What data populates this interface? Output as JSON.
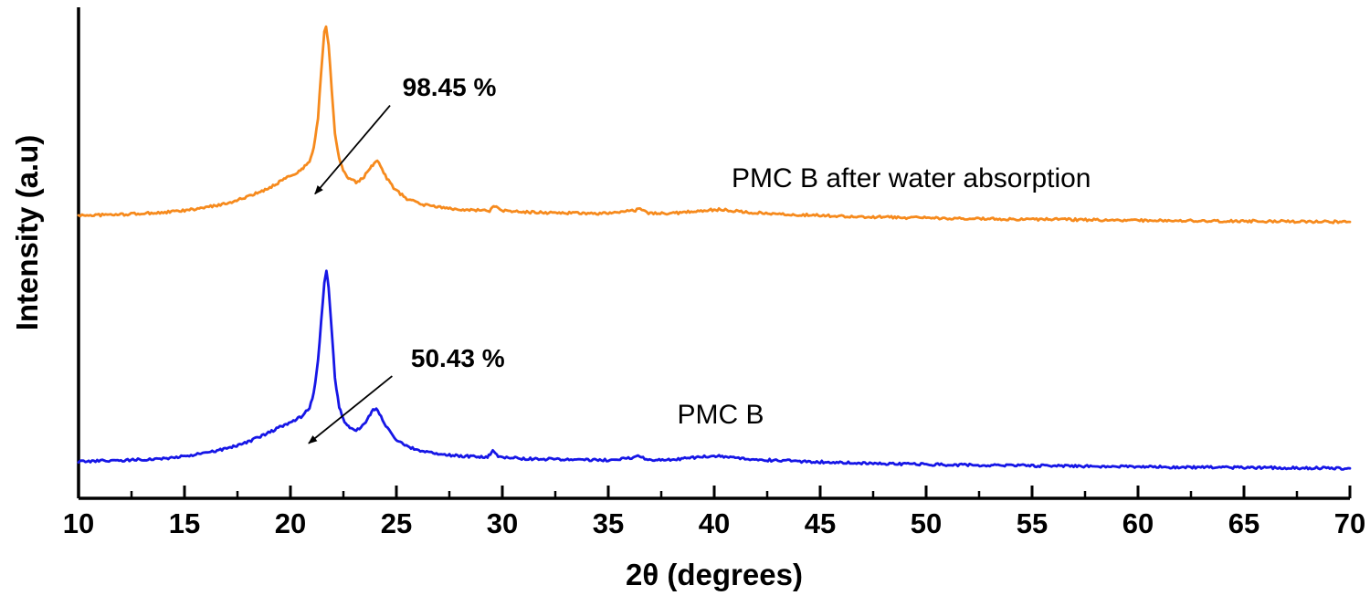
{
  "chart_data": {
    "type": "line",
    "title": "",
    "xlabel": "2θ (degrees)",
    "ylabel": "Intensity (a.u)",
    "xlim": [
      10,
      70
    ],
    "ylim": [
      0,
      1
    ],
    "x_ticks": [
      10,
      15,
      20,
      25,
      30,
      35,
      40,
      45,
      50,
      55,
      60,
      65,
      70
    ],
    "x_minor_ticks": [
      12.5,
      17.5,
      22.5,
      27.5,
      32.5,
      37.5,
      42.5,
      47.5,
      52.5,
      57.5,
      62.5,
      67.5
    ],
    "grid": false,
    "legend": "inline-labels",
    "axis_color": "#000000",
    "background": "#ffffff",
    "series": [
      {
        "name": "PMC B after water absorption",
        "color": "#F68A1D",
        "noise": 0.005,
        "label_pos": {
          "x": 49.3,
          "y": 0.651
        },
        "annotation": {
          "text": "98.45 %",
          "text_pos": {
            "x": 27.5,
            "y": 0.836
          },
          "arrow_from": {
            "x": 24.7,
            "y": 0.8
          },
          "arrow_to": {
            "x": 21.16,
            "y": 0.62
          }
        },
        "points": [
          [
            10,
            0.576
          ],
          [
            12,
            0.578
          ],
          [
            14,
            0.582
          ],
          [
            15,
            0.586
          ],
          [
            16,
            0.592
          ],
          [
            17,
            0.601
          ],
          [
            18,
            0.614
          ],
          [
            18.8,
            0.628
          ],
          [
            19.4,
            0.642
          ],
          [
            19.7,
            0.652
          ],
          [
            19.9,
            0.655
          ],
          [
            20.2,
            0.66
          ],
          [
            20.6,
            0.672
          ],
          [
            20.9,
            0.687
          ],
          [
            21.1,
            0.713
          ],
          [
            21.3,
            0.775
          ],
          [
            21.45,
            0.868
          ],
          [
            21.6,
            0.952
          ],
          [
            21.68,
            0.962
          ],
          [
            21.8,
            0.925
          ],
          [
            21.95,
            0.83
          ],
          [
            22.1,
            0.745
          ],
          [
            22.3,
            0.69
          ],
          [
            22.55,
            0.662
          ],
          [
            22.8,
            0.649
          ],
          [
            23.1,
            0.644
          ],
          [
            23.4,
            0.651
          ],
          [
            23.7,
            0.668
          ],
          [
            23.95,
            0.683
          ],
          [
            24.1,
            0.686
          ],
          [
            24.25,
            0.676
          ],
          [
            24.55,
            0.652
          ],
          [
            24.95,
            0.628
          ],
          [
            25.5,
            0.61
          ],
          [
            26.3,
            0.598
          ],
          [
            27.3,
            0.591
          ],
          [
            28.6,
            0.587
          ],
          [
            29.4,
            0.586
          ],
          [
            29.65,
            0.596
          ],
          [
            29.9,
            0.586
          ],
          [
            31,
            0.583
          ],
          [
            33,
            0.581
          ],
          [
            35,
            0.58
          ],
          [
            36.2,
            0.586
          ],
          [
            36.5,
            0.589
          ],
          [
            36.9,
            0.581
          ],
          [
            38,
            0.58
          ],
          [
            39.3,
            0.586
          ],
          [
            40.3,
            0.588
          ],
          [
            41.5,
            0.583
          ],
          [
            43,
            0.579
          ],
          [
            45,
            0.576
          ],
          [
            47.5,
            0.573
          ],
          [
            50,
            0.571
          ],
          [
            53,
            0.569
          ],
          [
            56,
            0.568
          ],
          [
            60,
            0.566
          ],
          [
            64,
            0.565
          ],
          [
            67,
            0.564
          ],
          [
            70,
            0.563
          ]
        ]
      },
      {
        "name": "PMC B",
        "color": "#1616E6",
        "noise": 0.005,
        "label_pos": {
          "x": 40.3,
          "y": 0.169
        },
        "annotation": {
          "text": "50.43 %",
          "text_pos": {
            "x": 27.9,
            "y": 0.284
          },
          "arrow_from": {
            "x": 24.8,
            "y": 0.249
          },
          "arrow_to": {
            "x": 20.86,
            "y": 0.112
          }
        },
        "points": [
          [
            10,
            0.075
          ],
          [
            12,
            0.077
          ],
          [
            14,
            0.081
          ],
          [
            15,
            0.086
          ],
          [
            16,
            0.092
          ],
          [
            17,
            0.101
          ],
          [
            18,
            0.115
          ],
          [
            18.8,
            0.13
          ],
          [
            19.5,
            0.145
          ],
          [
            20.0,
            0.154
          ],
          [
            20.5,
            0.166
          ],
          [
            20.9,
            0.185
          ],
          [
            21.1,
            0.215
          ],
          [
            21.3,
            0.28
          ],
          [
            21.45,
            0.36
          ],
          [
            21.6,
            0.44
          ],
          [
            21.7,
            0.462
          ],
          [
            21.8,
            0.43
          ],
          [
            21.95,
            0.34
          ],
          [
            22.1,
            0.245
          ],
          [
            22.3,
            0.185
          ],
          [
            22.55,
            0.155
          ],
          [
            22.8,
            0.142
          ],
          [
            23.1,
            0.138
          ],
          [
            23.4,
            0.147
          ],
          [
            23.7,
            0.166
          ],
          [
            23.9,
            0.18
          ],
          [
            24.05,
            0.183
          ],
          [
            24.2,
            0.172
          ],
          [
            24.5,
            0.148
          ],
          [
            24.9,
            0.124
          ],
          [
            25.4,
            0.107
          ],
          [
            26.2,
            0.095
          ],
          [
            27.2,
            0.089
          ],
          [
            28.5,
            0.085
          ],
          [
            29.3,
            0.084
          ],
          [
            29.55,
            0.097
          ],
          [
            29.8,
            0.084
          ],
          [
            31,
            0.081
          ],
          [
            33,
            0.079
          ],
          [
            35,
            0.078
          ],
          [
            36.1,
            0.083
          ],
          [
            36.4,
            0.088
          ],
          [
            36.8,
            0.079
          ],
          [
            38,
            0.078
          ],
          [
            39.3,
            0.084
          ],
          [
            40.3,
            0.086
          ],
          [
            41.3,
            0.08
          ],
          [
            43,
            0.077
          ],
          [
            45,
            0.074
          ],
          [
            47.5,
            0.071
          ],
          [
            50,
            0.069
          ],
          [
            53,
            0.067
          ],
          [
            56,
            0.066
          ],
          [
            60,
            0.064
          ],
          [
            64,
            0.063
          ],
          [
            67,
            0.062
          ],
          [
            70,
            0.061
          ]
        ]
      }
    ]
  }
}
